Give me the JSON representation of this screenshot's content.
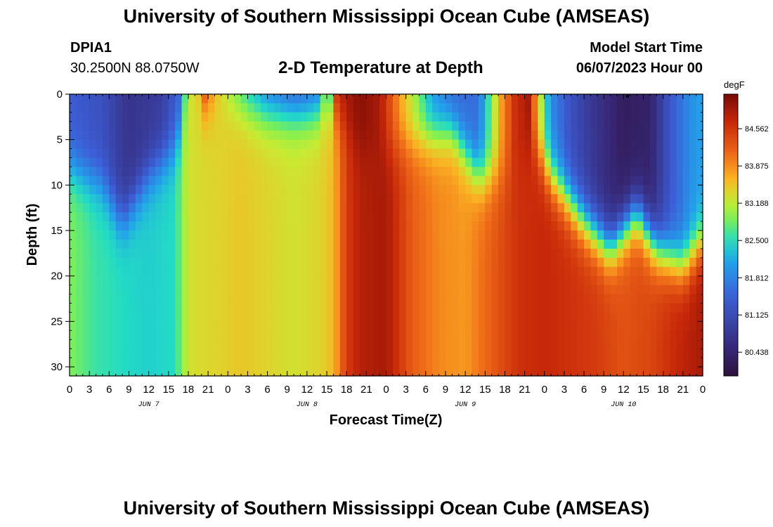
{
  "header": {
    "title": "University of Southern Mississippi Ocean Cube (AMSEAS)",
    "station_id": "DPIA1",
    "coordinates": "30.2500N  88.0750W",
    "subtitle": "2-D Temperature at Depth",
    "model_start_label": "Model Start Time",
    "model_start_value": "06/07/2023 Hour 00"
  },
  "footer": {
    "title": "University of Southern Mississippi Ocean Cube (AMSEAS)"
  },
  "chart_data": {
    "type": "heatmap",
    "title": "2-D Temperature at Depth",
    "xlabel": "Forecast Time(Z)",
    "ylabel": "Depth (ft)",
    "x_range_hours": [
      0,
      96
    ],
    "y_range_ft": [
      0,
      31
    ],
    "x_tick_labels": [
      "0",
      "3",
      "6",
      "9",
      "12",
      "15",
      "18",
      "21",
      "0",
      "3",
      "6",
      "9",
      "12",
      "15",
      "18",
      "21",
      "0",
      "3",
      "6",
      "9",
      "12",
      "15",
      "18",
      "21",
      "0",
      "3",
      "6",
      "9",
      "12",
      "15",
      "18",
      "21",
      "0"
    ],
    "x_tick_hours": [
      0,
      3,
      6,
      9,
      12,
      15,
      18,
      21,
      24,
      27,
      30,
      33,
      36,
      39,
      42,
      45,
      48,
      51,
      54,
      57,
      60,
      63,
      66,
      69,
      72,
      75,
      78,
      81,
      84,
      87,
      90,
      93,
      96
    ],
    "day_labels": [
      {
        "label": "JUN 7",
        "hour": 12
      },
      {
        "label": "JUN 8",
        "hour": 36
      },
      {
        "label": "JUN 9",
        "hour": 60
      },
      {
        "label": "JUN 10",
        "hour": 84
      }
    ],
    "y_ticks": [
      0,
      5,
      10,
      15,
      20,
      25,
      30
    ],
    "y_tick_labels": [
      "0",
      "5",
      "10",
      "15",
      "20",
      "25",
      "30"
    ],
    "colorbar": {
      "unit": "degF",
      "range": [
        80.0,
        85.2
      ],
      "tick_values": [
        84.562,
        83.875,
        83.188,
        82.5,
        81.812,
        81.125,
        80.438
      ],
      "tick_labels": [
        "84.562",
        "83.875",
        "83.188",
        "82.500",
        "81.812",
        "81.125",
        "80.438"
      ]
    },
    "surface_profile": [
      {
        "hour": 0,
        "v": 81.4
      },
      {
        "hour": 5,
        "v": 81.2
      },
      {
        "hour": 9,
        "v": 80.7
      },
      {
        "hour": 14,
        "v": 80.9
      },
      {
        "hour": 17,
        "v": 81.6
      },
      {
        "hour": 18,
        "v": 83.6
      },
      {
        "hour": 19,
        "v": 83.0
      },
      {
        "hour": 20.5,
        "v": 84.6
      },
      {
        "hour": 22.5,
        "v": 83.5
      },
      {
        "hour": 24.5,
        "v": 82.9
      },
      {
        "hour": 27,
        "v": 82.2
      },
      {
        "hour": 30,
        "v": 81.6
      },
      {
        "hour": 34,
        "v": 81.2
      },
      {
        "hour": 37.5,
        "v": 81.4
      },
      {
        "hour": 39,
        "v": 83.0
      },
      {
        "hour": 40,
        "v": 81.6
      },
      {
        "hour": 40.5,
        "v": 84.8
      },
      {
        "hour": 44,
        "v": 85.1
      },
      {
        "hour": 47,
        "v": 84.9
      },
      {
        "hour": 50,
        "v": 83.8
      },
      {
        "hour": 53,
        "v": 82.8
      },
      {
        "hour": 55,
        "v": 82.0
      },
      {
        "hour": 58,
        "v": 81.5
      },
      {
        "hour": 62,
        "v": 81.6
      },
      {
        "hour": 64,
        "v": 82.9
      },
      {
        "hour": 65,
        "v": 83.6
      },
      {
        "hour": 67.5,
        "v": 84.6
      },
      {
        "hour": 69.5,
        "v": 84.9
      },
      {
        "hour": 71,
        "v": 83.6
      },
      {
        "hour": 72,
        "v": 82.6
      },
      {
        "hour": 73,
        "v": 81.9
      },
      {
        "hour": 76,
        "v": 81.2
      },
      {
        "hour": 80,
        "v": 80.7
      },
      {
        "hour": 84,
        "v": 80.3
      },
      {
        "hour": 88,
        "v": 80.4
      },
      {
        "hour": 91,
        "v": 81.3
      },
      {
        "hour": 94,
        "v": 81.9
      },
      {
        "hour": 96,
        "v": 82.1
      }
    ],
    "bottom_profile": [
      {
        "hour": 0,
        "v": 82.9
      },
      {
        "hour": 4,
        "v": 82.6
      },
      {
        "hour": 8,
        "v": 82.5
      },
      {
        "hour": 12,
        "v": 82.4
      },
      {
        "hour": 16,
        "v": 82.5
      },
      {
        "hour": 18,
        "v": 83.3
      },
      {
        "hour": 22,
        "v": 83.4
      },
      {
        "hour": 26,
        "v": 83.5
      },
      {
        "hour": 30,
        "v": 83.4
      },
      {
        "hour": 34,
        "v": 83.3
      },
      {
        "hour": 38,
        "v": 83.4
      },
      {
        "hour": 40,
        "v": 83.6
      },
      {
        "hour": 42,
        "v": 84.5
      },
      {
        "hour": 44,
        "v": 84.8
      },
      {
        "hour": 48,
        "v": 84.9
      },
      {
        "hour": 52,
        "v": 84.2
      },
      {
        "hour": 56,
        "v": 83.9
      },
      {
        "hour": 60,
        "v": 83.8
      },
      {
        "hour": 64,
        "v": 84.2
      },
      {
        "hour": 68,
        "v": 84.6
      },
      {
        "hour": 72,
        "v": 84.7
      },
      {
        "hour": 76,
        "v": 84.6
      },
      {
        "hour": 80,
        "v": 84.5
      },
      {
        "hour": 84,
        "v": 84.3
      },
      {
        "hour": 88,
        "v": 84.4
      },
      {
        "hour": 92,
        "v": 84.7
      },
      {
        "hour": 96,
        "v": 84.9
      }
    ],
    "thermocline_depth": [
      {
        "hour": 0,
        "d": 8
      },
      {
        "hour": 5,
        "d": 10
      },
      {
        "hour": 8,
        "d": 14
      },
      {
        "hour": 12,
        "d": 9
      },
      {
        "hour": 16,
        "d": 6
      },
      {
        "hour": 18,
        "d": 1
      },
      {
        "hour": 24,
        "d": 1
      },
      {
        "hour": 30,
        "d": 2
      },
      {
        "hour": 36,
        "d": 2
      },
      {
        "hour": 40,
        "d": 1
      },
      {
        "hour": 44,
        "d": 6
      },
      {
        "hour": 48,
        "d": 6
      },
      {
        "hour": 53,
        "d": 5
      },
      {
        "hour": 58,
        "d": 4
      },
      {
        "hour": 62,
        "d": 9
      },
      {
        "hour": 66,
        "d": 9
      },
      {
        "hour": 70,
        "d": 5
      },
      {
        "hour": 73,
        "d": 9
      },
      {
        "hour": 78,
        "d": 14
      },
      {
        "hour": 82,
        "d": 17
      },
      {
        "hour": 86,
        "d": 13
      },
      {
        "hour": 89,
        "d": 17
      },
      {
        "hour": 93,
        "d": 19
      },
      {
        "hour": 96,
        "d": 16
      }
    ]
  }
}
